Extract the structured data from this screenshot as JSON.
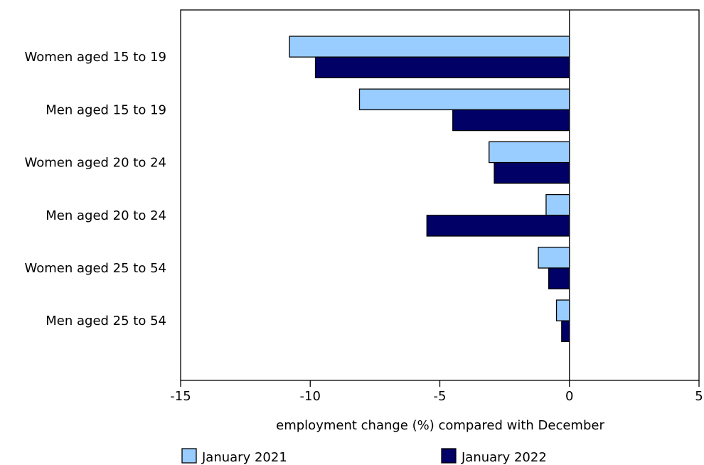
{
  "chart_data": {
    "type": "bar",
    "orientation": "horizontal",
    "categories": [
      "Women aged 15 to 19",
      "Men aged 15 to 19",
      "Women aged 20 to 24",
      "Men aged 20 to 24",
      "Women aged 25 to 54",
      "Men aged 25 to 54"
    ],
    "series": [
      {
        "name": "January 2021",
        "color": "#99ccff",
        "values": [
          -10.8,
          -8.1,
          -3.1,
          -0.9,
          -1.2,
          -0.5
        ]
      },
      {
        "name": "January 2022",
        "color": "#000066",
        "values": [
          -9.8,
          -4.5,
          -2.9,
          -5.5,
          -0.8,
          -0.3
        ]
      }
    ],
    "xlim": [
      -15,
      5
    ],
    "xticks": [
      -15,
      -10,
      -5,
      0,
      5
    ],
    "xtick_labels": [
      "-15",
      "-10",
      "-5",
      "0",
      "5"
    ],
    "xlabel": "employment change (%) compared with December",
    "ylabel": "",
    "title": "",
    "grid": false,
    "legend_position": "bottom"
  }
}
